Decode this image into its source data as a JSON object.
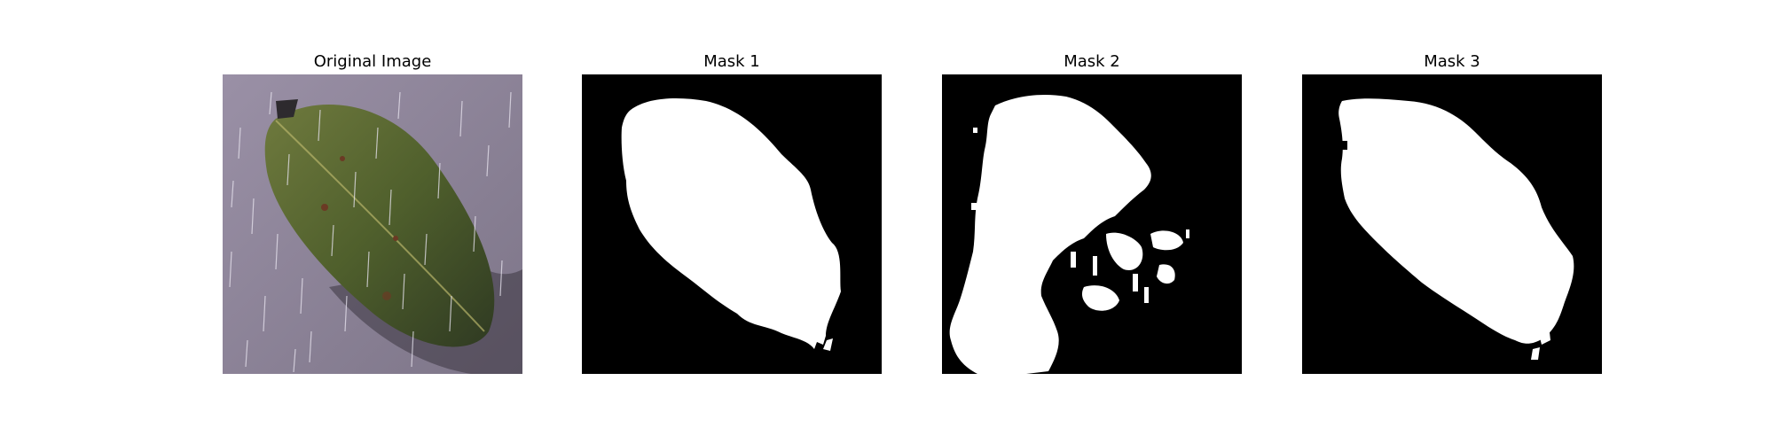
{
  "figure": {
    "panels": [
      {
        "title": "Original Image",
        "content": "leaf-photo-with-rain-streaks"
      },
      {
        "title": "Mask 1",
        "content": "binary-segmentation-mask"
      },
      {
        "title": "Mask 2",
        "content": "binary-segmentation-mask"
      },
      {
        "title": "Mask 3",
        "content": "binary-segmentation-mask"
      }
    ],
    "colors": {
      "background": "#ffffff",
      "mask_background": "#000000",
      "mask_foreground": "#ffffff",
      "photo_background": "#8a8196",
      "leaf_green": "#5c6a34"
    }
  }
}
